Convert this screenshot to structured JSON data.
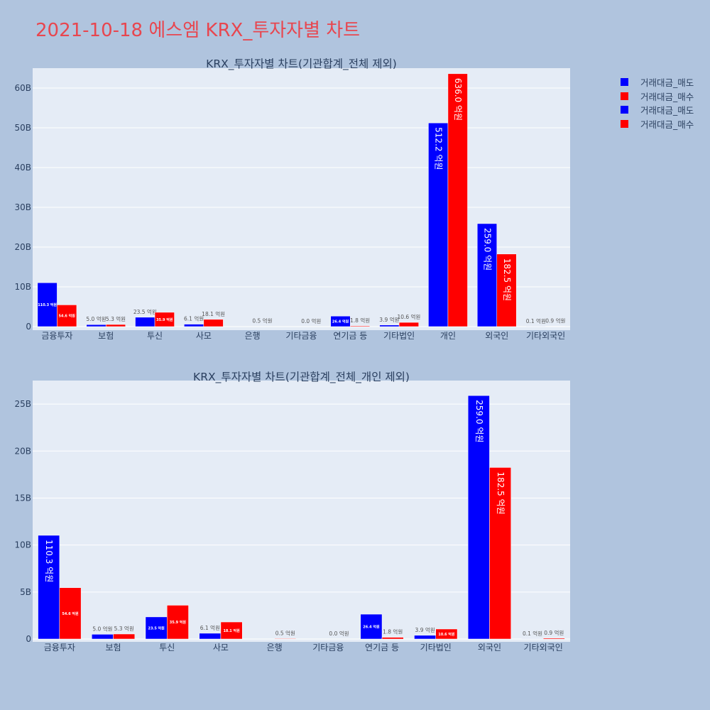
{
  "page_title": "2021-10-18 에스엠 KRX_투자자별 차트",
  "legend": [
    {
      "label": "거래대금_매도",
      "color": "#0000ff"
    },
    {
      "label": "거래대금_매수",
      "color": "#ff0000"
    },
    {
      "label": "거래대금_매도",
      "color": "#0000ff"
    },
    {
      "label": "거래대금_매수",
      "color": "#ff0000"
    }
  ],
  "colors": {
    "sell": "#0000ff",
    "buy": "#ff0000",
    "plot_bg": "#e5ecf6",
    "page_bg": "#b0c4de",
    "title": "#e8464f"
  },
  "chart_data": [
    {
      "type": "bar",
      "title": "KRX_투자자별 차트(기관합계_전체 제외)",
      "categories": [
        "금융투자",
        "보험",
        "투신",
        "사모",
        "은행",
        "기타금융",
        "연기금 등",
        "기타법인",
        "개인",
        "외국인",
        "기타외국인"
      ],
      "ylim": [
        0,
        65000000000
      ],
      "yticks": [
        0,
        10000000000,
        20000000000,
        30000000000,
        40000000000,
        50000000000,
        60000000000
      ],
      "ytick_labels": [
        "0",
        "10B",
        "20B",
        "30B",
        "40B",
        "50B",
        "60B"
      ],
      "grid": true,
      "series": [
        {
          "name": "거래대금_매도",
          "color": "#0000ff",
          "values": [
            11030000000,
            500000000,
            2350000000,
            610000000,
            0,
            0,
            2640000000,
            390000000,
            51220000000,
            25900000000,
            10000000
          ],
          "labels": [
            "110.3 억원",
            "5.0 억원",
            "23.5 억원",
            "6.1 억원",
            "",
            "",
            "26.4 억원",
            "3.9 억원",
            "512.2 억원",
            "259.0 억원",
            "0.1 억원"
          ]
        },
        {
          "name": "거래대금_매수",
          "color": "#ff0000",
          "values": [
            5460000000,
            530000000,
            3590000000,
            1810000000,
            50000000,
            0,
            180000000,
            1060000000,
            63600000000,
            18250000000,
            90000000
          ],
          "labels": [
            "54.6 억원",
            "5.3 억원",
            "35.9 억원",
            "18.1 억원",
            "0.5 억원",
            "0.0 억원",
            "1.8 억원",
            "10.6 억원",
            "636.0 억원",
            "182.5 억원",
            "0.9 억원"
          ]
        }
      ]
    },
    {
      "type": "bar",
      "title": "KRX_투자자별 차트(기관합계_전체_개인 제외)",
      "categories": [
        "금융투자",
        "보험",
        "투신",
        "사모",
        "은행",
        "기타금융",
        "연기금 등",
        "기타법인",
        "외국인",
        "기타외국인"
      ],
      "ylim": [
        0,
        27500000000
      ],
      "yticks": [
        0,
        5000000000,
        10000000000,
        15000000000,
        20000000000,
        25000000000
      ],
      "ytick_labels": [
        "0",
        "5B",
        "10B",
        "15B",
        "20B",
        "25B"
      ],
      "grid": true,
      "series": [
        {
          "name": "거래대금_매도",
          "color": "#0000ff",
          "values": [
            11030000000,
            500000000,
            2350000000,
            610000000,
            0,
            0,
            2640000000,
            390000000,
            25900000000,
            10000000
          ],
          "labels": [
            "110.3 억원",
            "5.0 억원",
            "23.5 억원",
            "6.1 억원",
            "",
            "",
            "26.4 억원",
            "3.9 억원",
            "259.0 억원",
            "0.1 억원"
          ]
        },
        {
          "name": "거래대금_매수",
          "color": "#ff0000",
          "values": [
            5460000000,
            530000000,
            3590000000,
            1810000000,
            50000000,
            0,
            180000000,
            1060000000,
            18250000000,
            90000000
          ],
          "labels": [
            "54.6 억원",
            "5.3 억원",
            "35.9 억원",
            "18.1 억원",
            "0.5 억원",
            "0.0 억원",
            "1.8 억원",
            "10.6 억원",
            "182.5 억원",
            "0.9 억원"
          ]
        }
      ]
    }
  ]
}
